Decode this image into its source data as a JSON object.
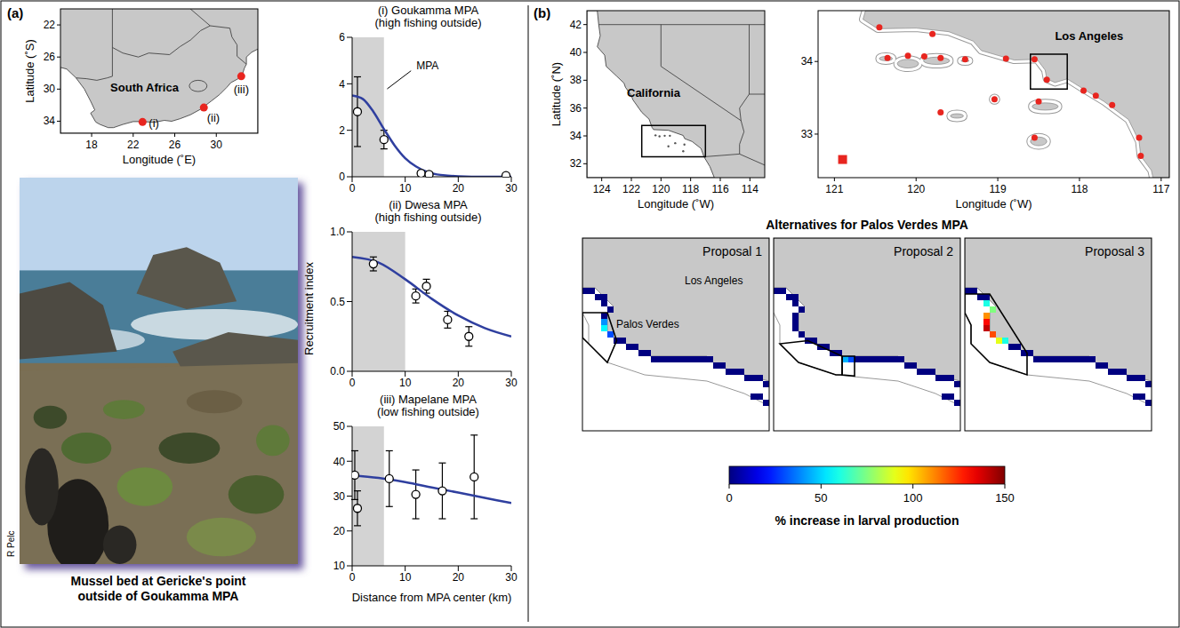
{
  "chart_data": [
    {
      "type": "line",
      "title": "(i) Goukamma MPA (high fishing outside)",
      "xlim": [
        0,
        30
      ],
      "xticks": [
        0,
        10,
        20,
        30
      ],
      "ylim": [
        0,
        6
      ],
      "yticks": [
        0,
        2,
        4,
        6
      ],
      "mpa_range": [
        0,
        6
      ],
      "annotation": "MPA",
      "series": [
        {
          "type": "scatter",
          "marker": "circle",
          "color": "#000000",
          "x": [
            1,
            6,
            13,
            14.5,
            29
          ],
          "values": [
            2.8,
            1.6,
            0.15,
            0.1,
            0.05
          ],
          "errors": [
            1.5,
            0.4,
            0.1,
            0.1,
            0.05
          ]
        },
        {
          "type": "line",
          "line_style": "solid",
          "color": "#2f3f9f",
          "x": [
            0,
            2,
            4,
            6,
            8,
            10,
            12,
            14,
            16,
            18,
            20,
            25,
            30
          ],
          "values": [
            3.5,
            3.35,
            2.8,
            2.05,
            1.35,
            0.8,
            0.45,
            0.22,
            0.1,
            0.05,
            0.02,
            0,
            0
          ]
        }
      ]
    },
    {
      "type": "line",
      "title": "(ii) Dwesa MPA (high fishing outside)",
      "y_label": "Recruitment index",
      "xlim": [
        0,
        30
      ],
      "xticks": [
        0,
        10,
        20,
        30
      ],
      "ylim": [
        0,
        1
      ],
      "yticks": [
        {
          "value": 0,
          "label": "0.0"
        },
        {
          "value": 0.5,
          "label": "0.5"
        },
        {
          "value": 1,
          "label": "1.0"
        }
      ],
      "mpa_range": [
        0,
        10
      ],
      "series": [
        {
          "type": "scatter",
          "marker": "circle",
          "color": "#000000",
          "x": [
            4,
            12,
            14,
            18,
            22
          ],
          "values": [
            0.77,
            0.54,
            0.61,
            0.37,
            0.25
          ],
          "errors": [
            0.05,
            0.05,
            0.05,
            0.06,
            0.07
          ]
        },
        {
          "type": "line",
          "line_style": "solid",
          "color": "#2f3f9f",
          "x": [
            0,
            5,
            10,
            15,
            20,
            25,
            30
          ],
          "values": [
            0.82,
            0.78,
            0.66,
            0.52,
            0.4,
            0.31,
            0.25
          ]
        }
      ]
    },
    {
      "type": "line",
      "title": "(iii) Mapelane MPA (low fishing outside)",
      "x_label": "Distance from MPA center (km)",
      "xlim": [
        0,
        30
      ],
      "xticks": [
        0,
        10,
        20,
        30
      ],
      "ylim": [
        10,
        50
      ],
      "yticks": [
        10,
        20,
        30,
        40,
        50
      ],
      "mpa_range": [
        0,
        6
      ],
      "series": [
        {
          "type": "scatter",
          "marker": "circle",
          "color": "#000000",
          "x": [
            0.5,
            1,
            7,
            12,
            17,
            23
          ],
          "values": [
            36,
            26.5,
            35,
            30.5,
            31.5,
            35.5
          ],
          "errors": [
            7,
            5,
            8,
            7,
            8,
            12
          ]
        },
        {
          "type": "line",
          "line_style": "solid",
          "color": "#2f3f9f",
          "x": [
            0,
            5,
            10,
            15,
            20,
            25,
            30
          ],
          "values": [
            36,
            35.2,
            34,
            32.5,
            31,
            29.5,
            28
          ]
        }
      ]
    }
  ],
  "figure": {
    "a": {
      "letter": "(a)",
      "map": {
        "xlim": [
          15,
          34
        ],
        "ylim": [
          35.5,
          20
        ],
        "xticks": [
          18,
          22,
          26,
          30
        ],
        "yticks": [
          22,
          26,
          30,
          34
        ],
        "x_label": "Longitude (˚E)",
        "y_label": "Latitude (˚S)",
        "labels": [
          "South Africa",
          "(i)",
          "(ii)",
          "(iii)"
        ],
        "sites": [
          [
            22.9,
            34.1
          ],
          [
            28.8,
            32.3
          ],
          [
            32.4,
            28.4
          ]
        ],
        "color": "#e8251f"
      },
      "photo": {
        "caption": "Mussel bed at Gericke's point outside of Goukamma MPA",
        "credit": "R Pelc"
      }
    },
    "b": {
      "letter": "(b)",
      "state_map": {
        "xlim": [
          125,
          113
        ],
        "ylim": [
          31,
          43
        ],
        "xticks": [
          124,
          122,
          120,
          118,
          116,
          114
        ],
        "yticks": [
          32,
          34,
          36,
          38,
          40,
          42
        ],
        "x_label": "Longitude (˚W)",
        "y_label": "Latitude (˚N)",
        "labels": [
          "California"
        ]
      },
      "coast_map": {
        "xlim": [
          121.2,
          116.9
        ],
        "ylim": [
          32.4,
          34.7
        ],
        "xticks": [
          121,
          120,
          119,
          118,
          117
        ],
        "yticks": [
          33,
          34
        ],
        "x_label": "Longitude (˚W)",
        "labels": [
          "Los Angeles"
        ],
        "color": "#e8251f",
        "sites": [
          [
            120.45,
            34.47
          ],
          [
            120.35,
            34.05
          ],
          [
            120.1,
            34.08
          ],
          [
            119.9,
            34.07
          ],
          [
            119.7,
            34.05
          ],
          [
            119.4,
            34.03
          ],
          [
            119.8,
            34.38
          ],
          [
            118.9,
            34.04
          ],
          [
            118.55,
            34.03
          ],
          [
            118.4,
            33.75
          ],
          [
            119.7,
            33.3
          ],
          [
            119.04,
            33.48
          ],
          [
            118.5,
            33.45
          ],
          [
            117.95,
            33.6
          ],
          [
            117.8,
            33.53
          ],
          [
            117.6,
            33.4
          ],
          [
            117.27,
            32.95
          ],
          [
            117.25,
            32.7
          ],
          [
            118.55,
            32.95
          ]
        ],
        "square_site": [
          120.9,
          32.65
        ]
      },
      "proposals": {
        "title": "Alternatives for Palos Verdes MPA",
        "coast_cells": [
          [
            0,
            8,
            0
          ],
          [
            1,
            8,
            0
          ],
          [
            2,
            9,
            0
          ],
          [
            3,
            9,
            0
          ],
          [
            3,
            10,
            0
          ],
          [
            4,
            11,
            0
          ],
          [
            3,
            12,
            0
          ],
          [
            3,
            13,
            0
          ],
          [
            3,
            14,
            0
          ],
          [
            4,
            15,
            0
          ],
          [
            5,
            16,
            0
          ],
          [
            6,
            16,
            0
          ],
          [
            7,
            17,
            0
          ],
          [
            8,
            17,
            0
          ],
          [
            9,
            18,
            0
          ],
          [
            10,
            18,
            0
          ],
          [
            11,
            19,
            0
          ],
          [
            12,
            19,
            0
          ],
          [
            13,
            19,
            0
          ],
          [
            14,
            19,
            0
          ],
          [
            15,
            19,
            0
          ],
          [
            16,
            19,
            0
          ],
          [
            17,
            19,
            0
          ],
          [
            18,
            19,
            0
          ],
          [
            19,
            19,
            0
          ],
          [
            20,
            19,
            0
          ],
          [
            21,
            20,
            0
          ],
          [
            22,
            20,
            0
          ],
          [
            23,
            21,
            0
          ],
          [
            24,
            21,
            0
          ],
          [
            25,
            21,
            0
          ],
          [
            26,
            22,
            0
          ],
          [
            27,
            22,
            0
          ],
          [
            28,
            22,
            0
          ],
          [
            29,
            23,
            0
          ],
          [
            27,
            25,
            0
          ],
          [
            28,
            25,
            0
          ],
          [
            29,
            26,
            0
          ]
        ],
        "maps": [
          {
            "name": "Proposal 1",
            "labels": [
              "Los Angeles",
              "Palos Verdes"
            ],
            "cells": [
              [
                3,
                13,
                40
              ],
              [
                3,
                14,
                55
              ],
              [
                4,
                15,
                30
              ]
            ]
          },
          {
            "name": "Proposal 2",
            "cells": [
              [
                11,
                19,
                45
              ],
              [
                12,
                19,
                30
              ]
            ]
          },
          {
            "name": "Proposal 3",
            "cells": [
              [
                3,
                10,
                60
              ],
              [
                4,
                11,
                75
              ],
              [
                3,
                12,
                110
              ],
              [
                3,
                13,
                130
              ],
              [
                3,
                14,
                140
              ],
              [
                4,
                15,
                120
              ],
              [
                5,
                16,
                90
              ],
              [
                6,
                16,
                60
              ]
            ]
          }
        ]
      },
      "colorbar": {
        "range": [
          0,
          150
        ],
        "ticks": [
          0,
          50,
          100,
          150
        ],
        "label": "% increase in larval production"
      }
    }
  }
}
